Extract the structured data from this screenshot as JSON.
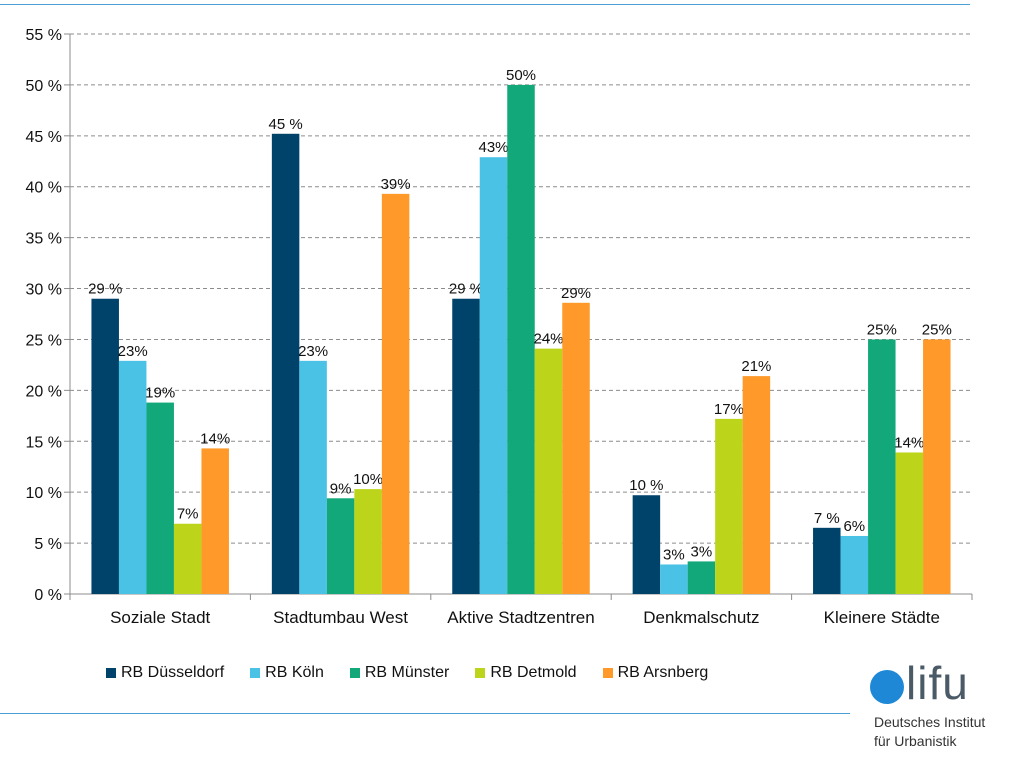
{
  "chart_data": {
    "type": "bar",
    "categories": [
      "Soziale Stadt",
      "Stadtumbau West",
      "Aktive Stadtzentren",
      "Denkmalschutz",
      "Kleinere Städte"
    ],
    "series": [
      {
        "name": "RB Düsseldorf",
        "color": "#00436a",
        "values": [
          29,
          45.2,
          29,
          9.7,
          6.5
        ],
        "labels": [
          "29 %",
          "45 %",
          "29 %",
          "10 %",
          "7 %"
        ]
      },
      {
        "name": "RB Köln",
        "color": "#4ac2e6",
        "values": [
          22.9,
          22.9,
          42.9,
          2.9,
          5.7
        ],
        "labels": [
          "23%",
          "23%",
          "43%",
          "3%",
          "6%"
        ]
      },
      {
        "name": "RB Münster",
        "color": "#12a87a",
        "values": [
          18.8,
          9.4,
          50,
          3.2,
          25
        ],
        "labels": [
          "19%",
          "9%",
          "50%",
          "3%",
          "25%"
        ]
      },
      {
        "name": "RB Detmold",
        "color": "#bcd51b",
        "values": [
          6.9,
          10.3,
          24.1,
          17.2,
          13.9
        ],
        "labels": [
          "7%",
          "10%",
          "24%",
          "17%",
          "14%"
        ]
      },
      {
        "name": "RB Arsnberg",
        "color": "#ff9a2a",
        "values": [
          14.3,
          39.3,
          28.6,
          21.4,
          25
        ],
        "labels": [
          "14%",
          "39%",
          "29%",
          "21%",
          "25%"
        ]
      }
    ],
    "yticks": [
      "0 %",
      "5 %",
      "10 %",
      "15 %",
      "20 %",
      "25 %",
      "30 %",
      "35 %",
      "40 %",
      "45 %",
      "50 %",
      "55 %"
    ],
    "ylim": [
      0,
      55
    ],
    "grid": true,
    "legend_position": "bottom"
  },
  "logo": {
    "word": "lifu",
    "line1": "Deutsches Institut",
    "line2": "für Urbanistik"
  }
}
